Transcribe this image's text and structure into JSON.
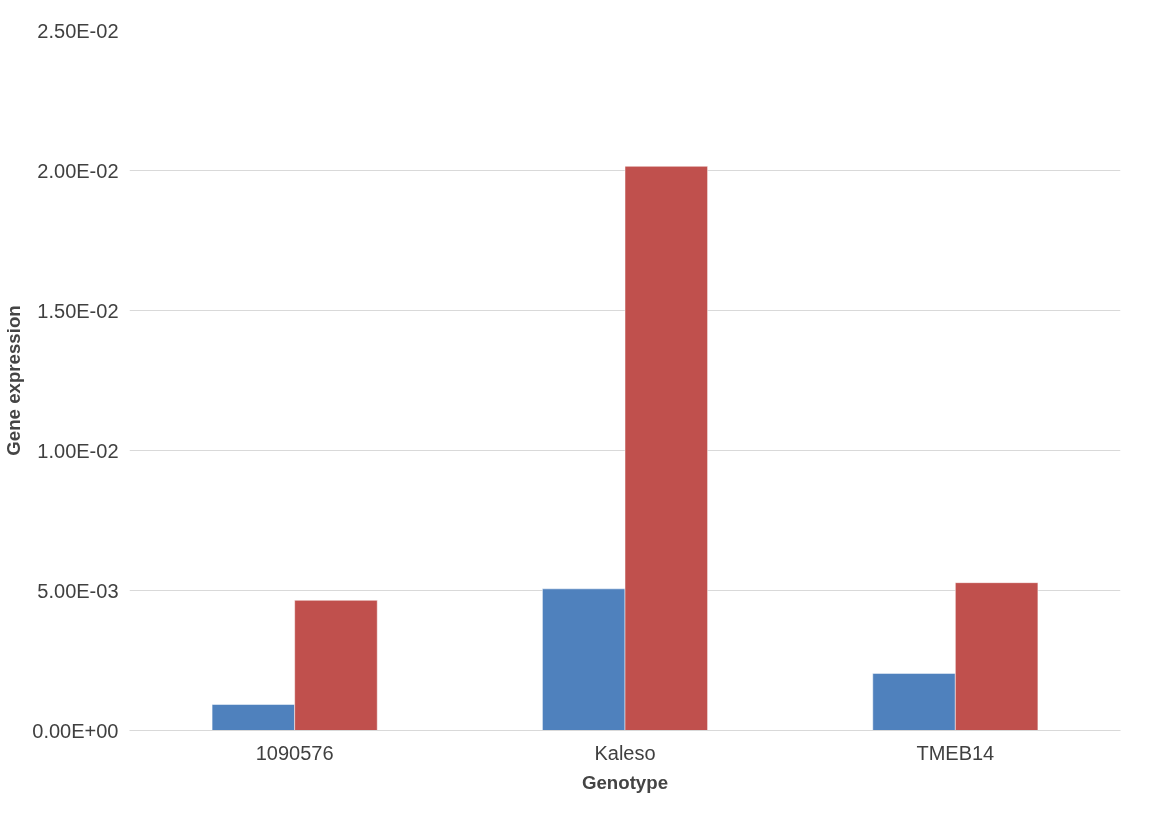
{
  "chart_data": {
    "type": "bar",
    "xlabel": "Genotype",
    "ylabel": "Gene expression",
    "categories": [
      "1090576",
      "Kaleso",
      "TMEB14"
    ],
    "series": [
      {
        "color": "#4f81bd",
        "values": [
          0.00093,
          0.00506,
          0.00204
        ]
      },
      {
        "color": "#c0504d",
        "values": [
          0.00465,
          0.02015,
          0.00528
        ]
      }
    ],
    "ylim": [
      0,
      0.025
    ],
    "yticks": [
      {
        "value": 0,
        "label": "0.00E+00"
      },
      {
        "value": 0.005,
        "label": "5.00E-03"
      },
      {
        "value": 0.01,
        "label": "1.00E-02"
      },
      {
        "value": 0.015,
        "label": "1.50E-02"
      },
      {
        "value": 0.02,
        "label": "2.00E-02"
      },
      {
        "value": 0.025,
        "label": "2.50E-02"
      }
    ],
    "grid": "y"
  }
}
